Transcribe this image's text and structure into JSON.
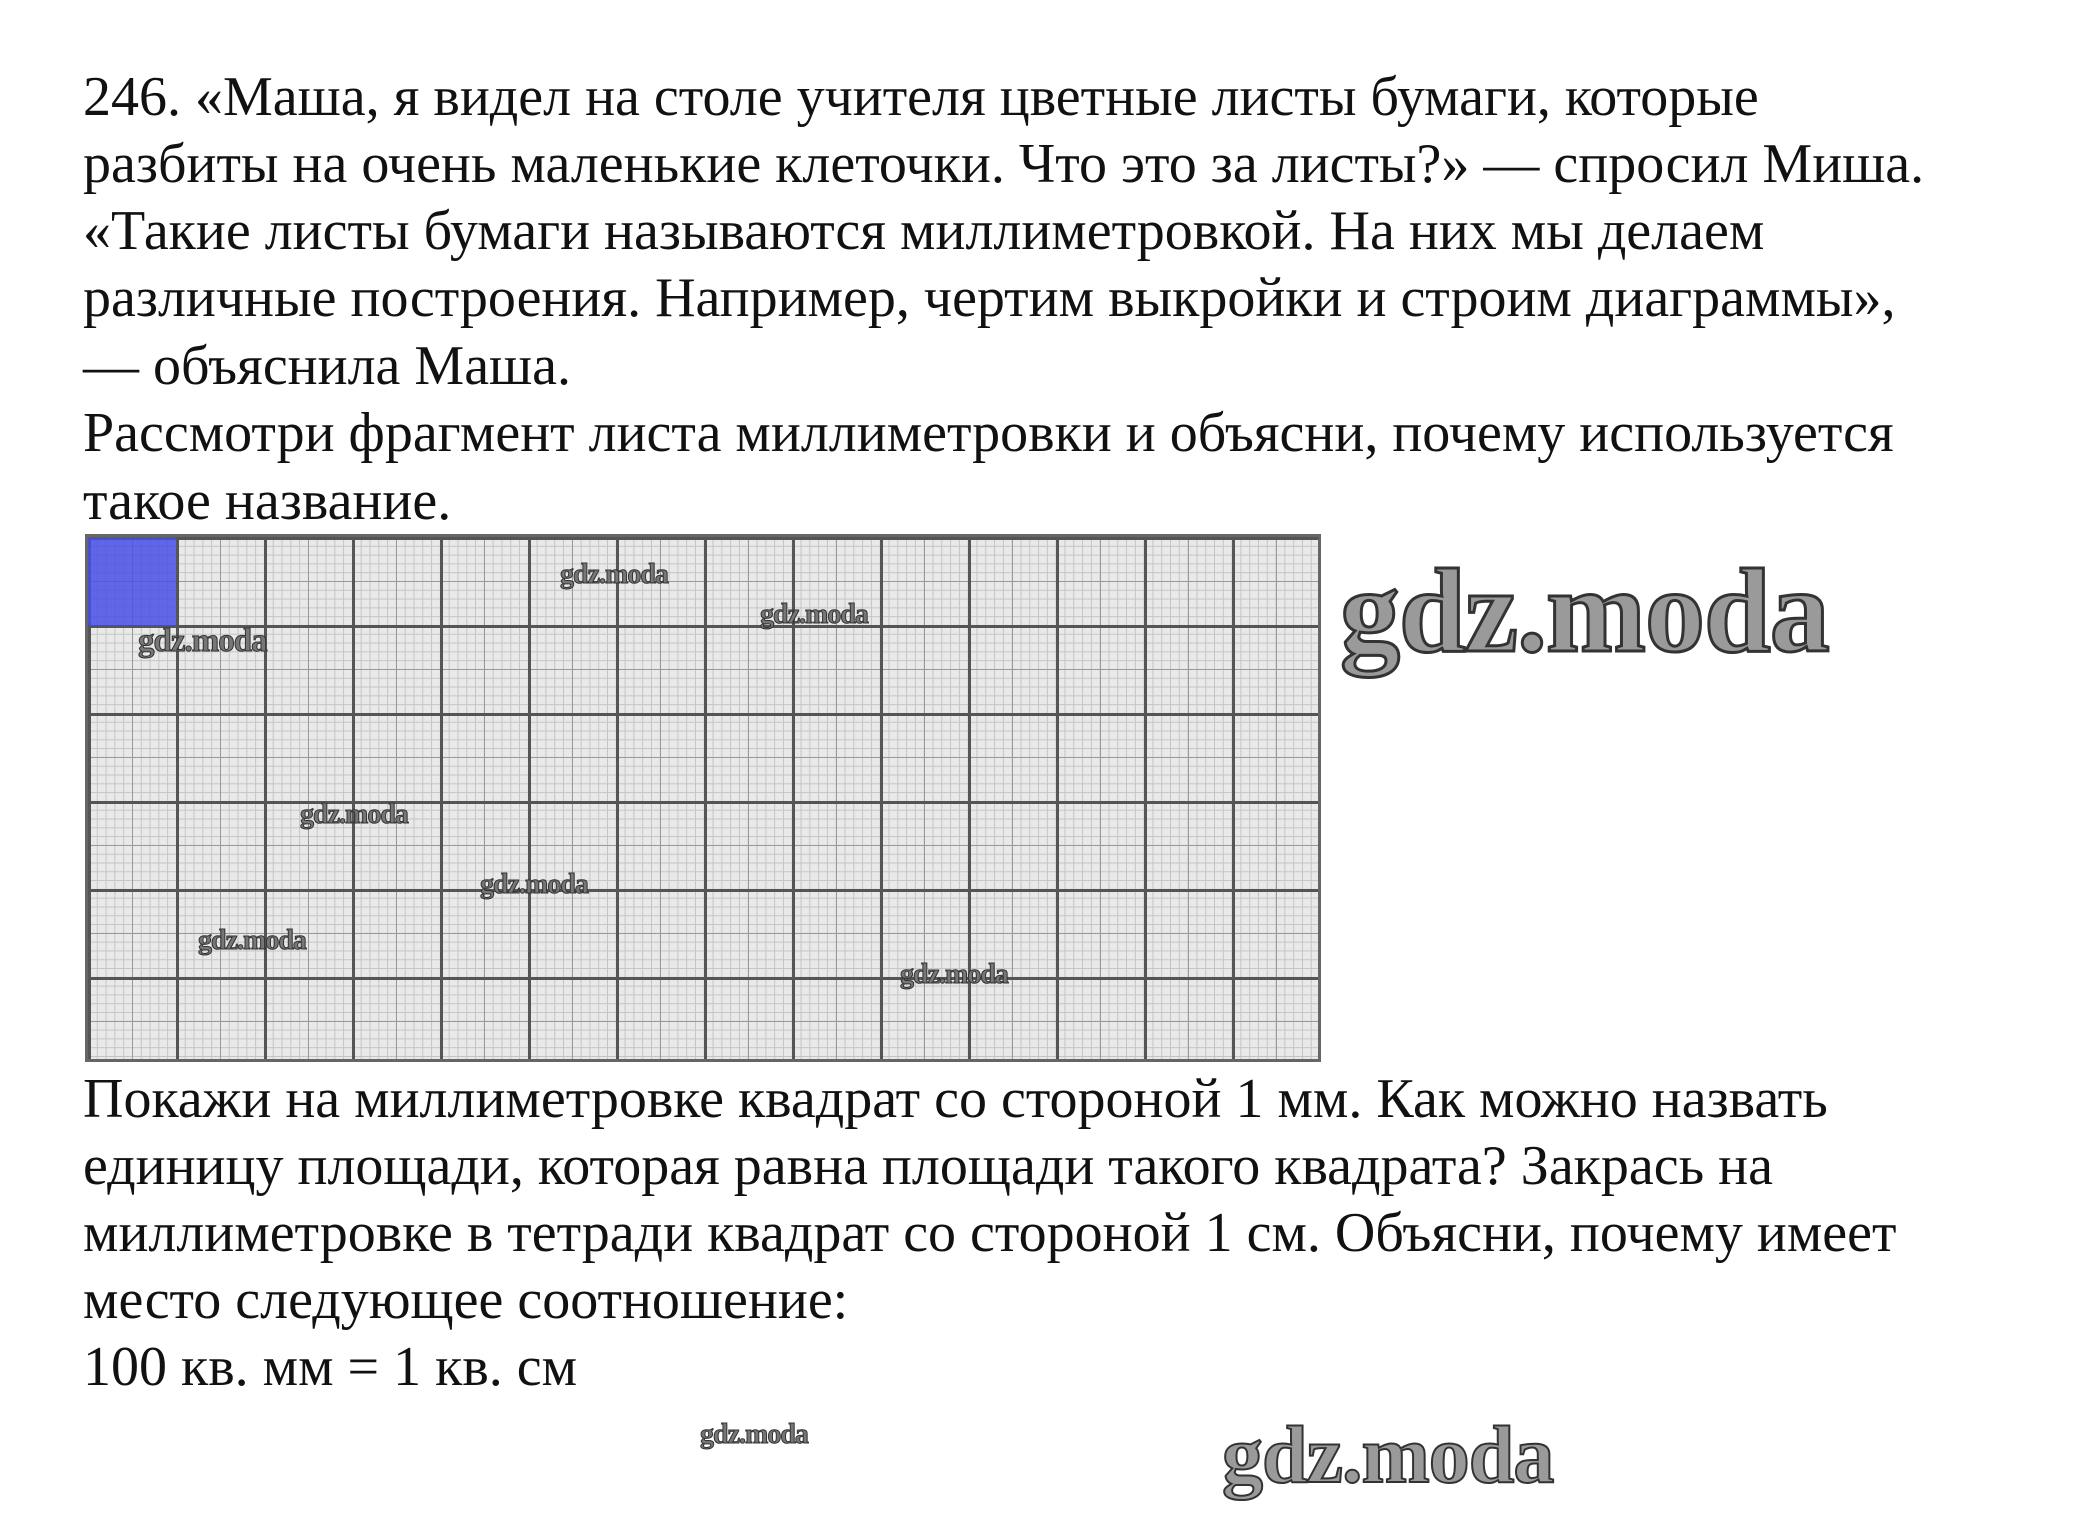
{
  "problem": {
    "lines": [
      "246. «Маша, я видел на столе учителя цветные листы бумаги, которые",
      "разбиты на очень маленькие клеточки. Что это за листы?» — спросил Миша.",
      "«Такие листы бумаги называются миллиметровкой. На них мы делаем",
      "различные построения. Например, чертим выкройки и строим диаграммы»,",
      "— объяснила Маша.",
      "Рассмотри фрагмент листа миллиметровки и объясни, почему используется",
      "такое название."
    ],
    "task_lines": [
      "Покажи на миллиметровке квадрат со стороной 1 мм. Как можно назвать",
      "единицу площади, которая равна площади такого квадрата? Закрась на",
      "миллиметровке в тетради квадрат со стороной 1 см. Объясни, почему имеет",
      "место следующее соотношение:",
      "100 кв. мм = 1 кв. см"
    ]
  },
  "figure": {
    "highlight_color": "#4650e6",
    "grid_columns_cm": 14,
    "grid_rows_cm": 6,
    "highlighted_square": "1 cm"
  },
  "watermark": "gdz.moda"
}
